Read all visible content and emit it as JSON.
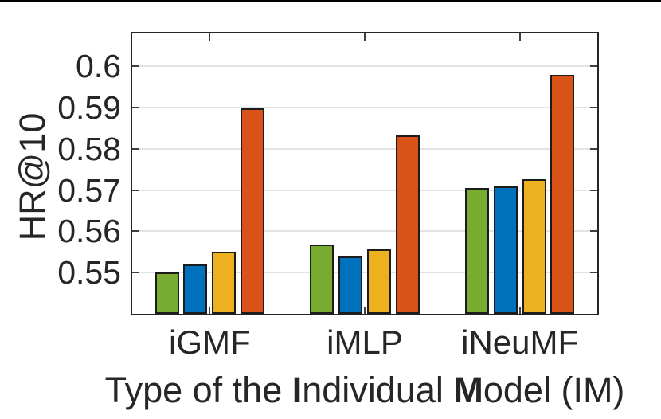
{
  "page": {
    "background": "#ffffff",
    "top_rule_color": "#000000"
  },
  "chart_data": {
    "type": "bar",
    "title": "",
    "ylabel": "HR@10",
    "xlabel": "Type of the Individual Model (IM)",
    "xlabel_parts": [
      {
        "text": "Type of the ",
        "bold": false
      },
      {
        "text": "I",
        "bold": true
      },
      {
        "text": "ndividual ",
        "bold": false
      },
      {
        "text": "M",
        "bold": true
      },
      {
        "text": "odel (IM)",
        "bold": false
      }
    ],
    "categories": [
      "iGMF",
      "iMLP",
      "iNeuMF"
    ],
    "series": [
      {
        "name": "green",
        "color": "#77AC30",
        "values": [
          0.5501,
          0.5568,
          0.5705
        ]
      },
      {
        "name": "blue",
        "color": "#0072BD",
        "values": [
          0.5519,
          0.5539,
          0.571
        ]
      },
      {
        "name": "yellow",
        "color": "#EDB120",
        "values": [
          0.5551,
          0.5557,
          0.5727
        ]
      },
      {
        "name": "orange",
        "color": "#D95319",
        "values": [
          0.5899,
          0.5832,
          0.598
        ]
      }
    ],
    "yticks": [
      0.55,
      0.56,
      0.57,
      0.58,
      0.59,
      0.6
    ],
    "ytick_labels": [
      "0.55",
      "0.56",
      "0.57",
      "0.58",
      "0.59",
      "0.6"
    ],
    "ylim": [
      0.54,
      0.608
    ],
    "xlim_slots": 3,
    "grid": "horizontal-only",
    "legend": "none",
    "axis_color": "#262626",
    "grid_color": "#e3e3e3",
    "bar_edge_color": "#1c1c1c"
  }
}
